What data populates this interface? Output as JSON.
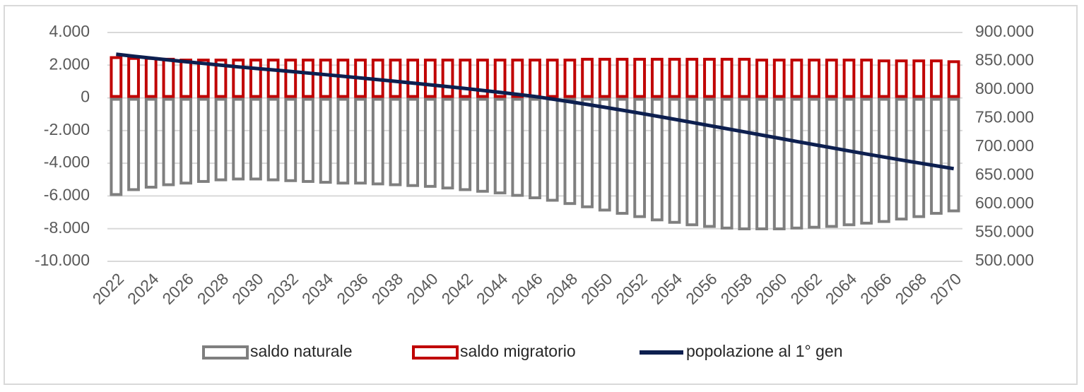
{
  "chart_data": {
    "type": "combo",
    "categories": [
      "2022",
      null,
      "2024",
      null,
      "2026",
      null,
      "2028",
      null,
      "2030",
      null,
      "2032",
      null,
      "2034",
      null,
      "2036",
      null,
      "2038",
      null,
      "2040",
      null,
      "2042",
      null,
      "2044",
      null,
      "2046",
      null,
      "2048",
      null,
      "2050",
      null,
      "2052",
      null,
      "2054",
      null,
      "2056",
      null,
      "2058",
      null,
      "2060",
      null,
      "2062",
      null,
      "2064",
      null,
      "2066",
      null,
      "2068",
      null,
      "2070"
    ],
    "series": [
      {
        "name": "saldo naturale",
        "type": "bar",
        "color": "#7f7f7f",
        "values": [
          -6000,
          -5700,
          -5550,
          -5400,
          -5300,
          -5200,
          -5100,
          -5050,
          -5050,
          -5100,
          -5150,
          -5200,
          -5250,
          -5300,
          -5300,
          -5350,
          -5400,
          -5450,
          -5500,
          -5600,
          -5700,
          -5800,
          -5900,
          -6050,
          -6200,
          -6350,
          -6550,
          -6750,
          -6950,
          -7150,
          -7350,
          -7550,
          -7700,
          -7850,
          -7950,
          -8050,
          -8100,
          -8100,
          -8100,
          -8050,
          -8000,
          -7950,
          -7850,
          -7750,
          -7650,
          -7500,
          -7350,
          -7150,
          -7000
        ]
      },
      {
        "name": "saldo migratorio",
        "type": "bar",
        "color": "#c00000",
        "values": [
          2550,
          2500,
          2500,
          2450,
          2400,
          2400,
          2400,
          2400,
          2400,
          2400,
          2400,
          2400,
          2400,
          2400,
          2400,
          2400,
          2400,
          2400,
          2400,
          2400,
          2400,
          2400,
          2400,
          2400,
          2400,
          2400,
          2400,
          2450,
          2450,
          2450,
          2450,
          2450,
          2450,
          2450,
          2450,
          2450,
          2450,
          2400,
          2400,
          2400,
          2400,
          2400,
          2400,
          2400,
          2350,
          2350,
          2350,
          2350,
          2300
        ]
      },
      {
        "name": "popolazione al 1° gen",
        "type": "line",
        "axis": "y2",
        "color": "#0d1f4f",
        "values": [
          862000,
          858500,
          855200,
          852000,
          848900,
          845900,
          842900,
          839900,
          837200,
          834600,
          831900,
          829100,
          826300,
          823400,
          820500,
          817600,
          814600,
          811600,
          808500,
          805400,
          802200,
          798800,
          795400,
          791800,
          788100,
          783600,
          779000,
          774200,
          769300,
          764200,
          759000,
          753700,
          748300,
          742800,
          737300,
          731800,
          726300,
          720700,
          715100,
          709500,
          704000,
          698500,
          693000,
          687600,
          682300,
          677100,
          672000,
          667000,
          662000
        ]
      }
    ],
    "ylim": [
      -10000,
      4000
    ],
    "yticks": [
      {
        "value": -10000,
        "label": "-10.000"
      },
      {
        "value": -8000,
        "label": "-8.000"
      },
      {
        "value": -6000,
        "label": "-6.000"
      },
      {
        "value": -4000,
        "label": "-4.000"
      },
      {
        "value": -2000,
        "label": "-2.000"
      },
      0,
      {
        "value": 2000,
        "label": "2.000"
      },
      {
        "value": 4000,
        "label": "4.000"
      }
    ],
    "y2lim": [
      500000,
      900000
    ],
    "y2ticks": [
      {
        "value": 500000,
        "label": "500.000"
      },
      {
        "value": 550000,
        "label": "550.000"
      },
      {
        "value": 600000,
        "label": "600.000"
      },
      {
        "value": 650000,
        "label": "650.000"
      },
      {
        "value": 700000,
        "label": "700.000"
      },
      {
        "value": 750000,
        "label": "750.000"
      },
      {
        "value": 800000,
        "label": "800.000"
      },
      {
        "value": 850000,
        "label": "850.000"
      },
      {
        "value": 900000,
        "label": "900.000"
      }
    ],
    "grid": true,
    "legend": "bottom"
  }
}
